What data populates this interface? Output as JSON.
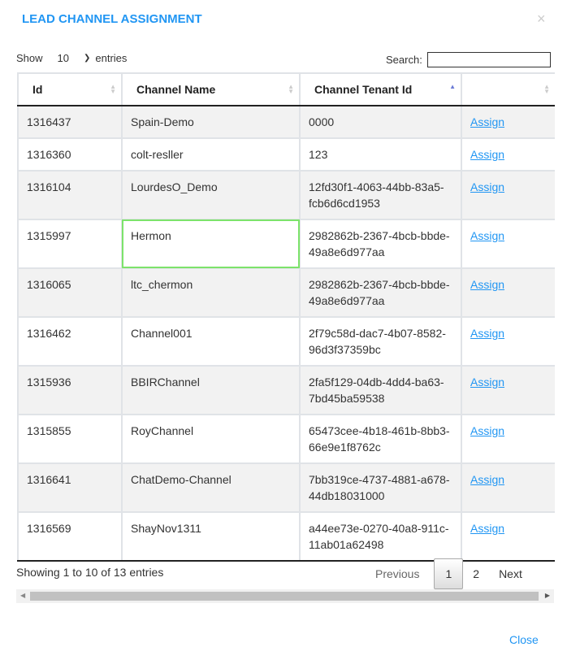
{
  "modal": {
    "title": "LEAD CHANNEL ASSIGNMENT",
    "close_icon": "×",
    "close_label": "Close"
  },
  "length": {
    "show": "Show",
    "value": "10",
    "entries": "entries"
  },
  "search": {
    "label": "Search:",
    "value": ""
  },
  "columns": [
    "Id",
    "Channel Name",
    "Channel Tenant Id",
    ""
  ],
  "sort": {
    "column": "Channel Tenant Id",
    "direction": "ascending"
  },
  "rows": [
    {
      "id": "1316437",
      "name": "Spain-Demo",
      "tenant": "0000",
      "action": "Assign"
    },
    {
      "id": "1316360",
      "name": "colt-resller",
      "tenant": "123",
      "action": "Assign"
    },
    {
      "id": "1316104",
      "name": "LourdesO_Demo",
      "tenant": "12fd30f1-4063-44bb-83a5-fcb6d6cd1953",
      "action": "Assign"
    },
    {
      "id": "1315997",
      "name": "Hermon",
      "tenant": "2982862b-2367-4bcb-bbde-49a8e6d977aa",
      "action": "Assign"
    },
    {
      "id": "1316065",
      "name": "ltc_chermon",
      "tenant": "2982862b-2367-4bcb-bbde-49a8e6d977aa",
      "action": "Assign"
    },
    {
      "id": "1316462",
      "name": "Channel001",
      "tenant": "2f79c58d-dac7-4b07-8582-96d3f37359bc",
      "action": "Assign"
    },
    {
      "id": "1315936",
      "name": "BBIRChannel",
      "tenant": "2fa5f129-04db-4dd4-ba63-7bd45ba59538",
      "action": "Assign"
    },
    {
      "id": "1315855",
      "name": "RoyChannel",
      "tenant": "65473cee-4b18-461b-8bb3-66e9e1f8762c",
      "action": "Assign"
    },
    {
      "id": "1316641",
      "name": "ChatDemo-Channel",
      "tenant": "7bb319ce-4737-4881-a678-44db18031000",
      "action": "Assign"
    },
    {
      "id": "1316569",
      "name": "ShayNov1311",
      "tenant": "a44ee73e-0270-40a8-911c-11ab01a62498",
      "action": "Assign"
    }
  ],
  "footer": {
    "info": "Showing 1 to 10 of 13 entries",
    "previous": "Previous",
    "pages": [
      "1",
      "2"
    ],
    "current_page": "1",
    "next": "Next"
  },
  "colors": {
    "accent": "#2196f3",
    "focus_outline": "#7de36b"
  }
}
